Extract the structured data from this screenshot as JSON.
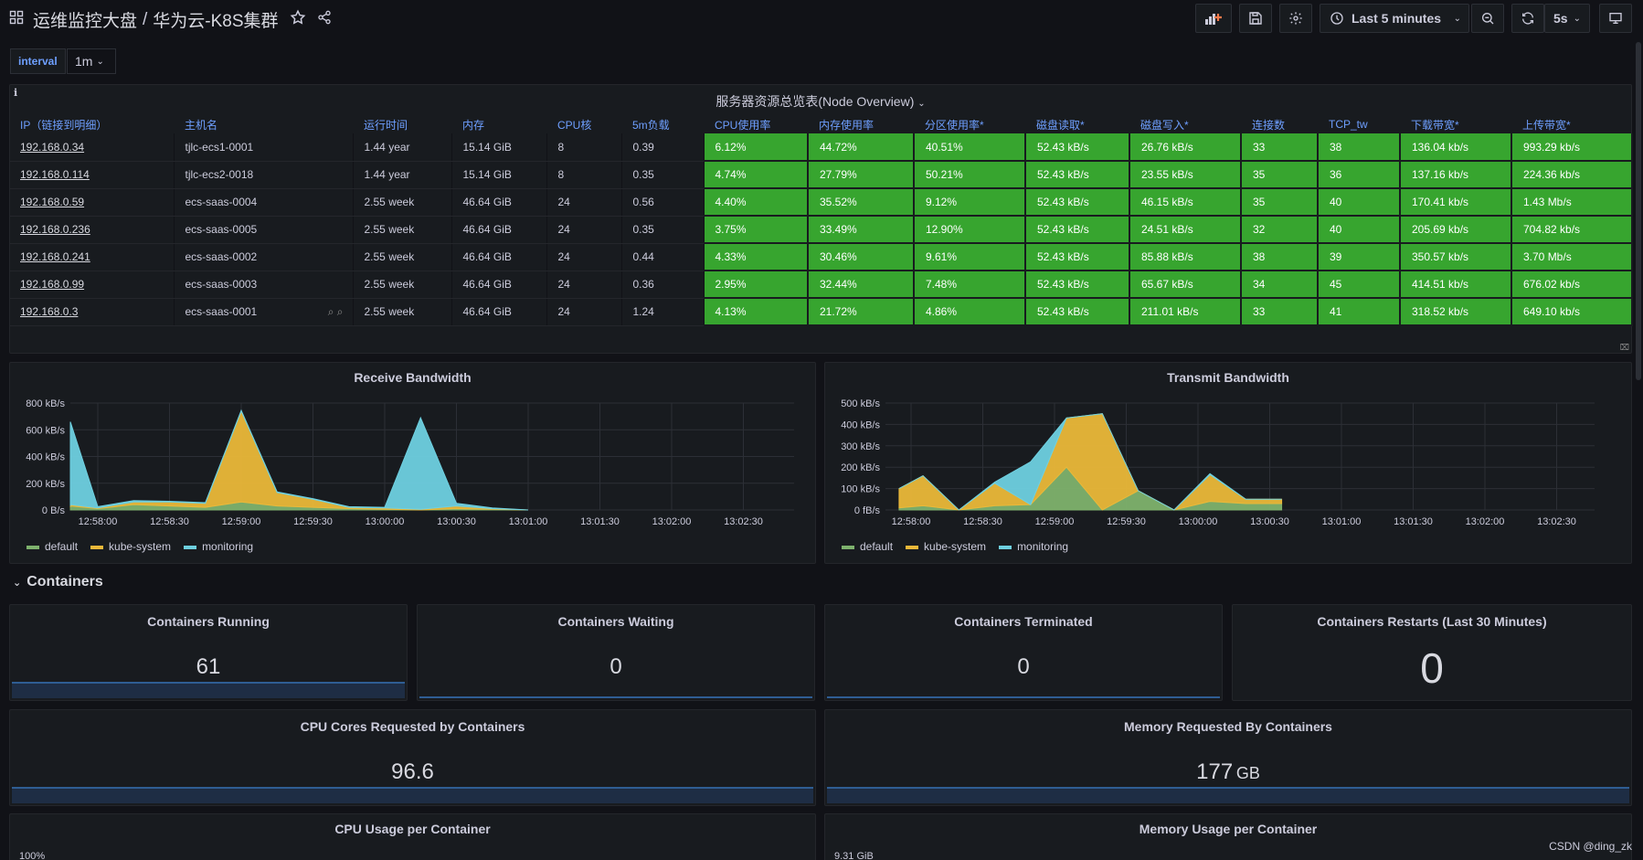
{
  "header": {
    "folder": "运维监控大盘",
    "separator": "/",
    "dashboard": "华为云-K8S集群",
    "time_range": "Last 5 minutes",
    "refresh": "5s"
  },
  "variables": {
    "interval_label": "interval",
    "interval_value": "1m"
  },
  "node_overview": {
    "title": "服务器资源总览表(Node Overview)",
    "info": "i",
    "columns": [
      "IP（链接到明细）",
      "主机名",
      "运行时间",
      "内存",
      "CPU核",
      "5m负载",
      "CPU使用率",
      "内存使用率",
      "分区使用率*",
      "磁盘读取*",
      "磁盘写入*",
      "连接数",
      "TCP_tw",
      "下载带宽*",
      "上传带宽*"
    ],
    "rows": [
      [
        "192.168.0.34",
        "tjlc-ecs1-0001",
        "1.44 year",
        "15.14 GiB",
        "8",
        "0.39",
        "6.12%",
        "44.72%",
        "40.51%",
        "52.43 kB/s",
        "26.76 kB/s",
        "33",
        "38",
        "136.04 kb/s",
        "993.29 kb/s"
      ],
      [
        "192.168.0.114",
        "tjlc-ecs2-0018",
        "1.44 year",
        "15.14 GiB",
        "8",
        "0.35",
        "4.74%",
        "27.79%",
        "50.21%",
        "52.43 kB/s",
        "23.55 kB/s",
        "35",
        "36",
        "137.16 kb/s",
        "224.36 kb/s"
      ],
      [
        "192.168.0.59",
        "ecs-saas-0004",
        "2.55 week",
        "46.64 GiB",
        "24",
        "0.56",
        "4.40%",
        "35.52%",
        "9.12%",
        "52.43 kB/s",
        "46.15 kB/s",
        "35",
        "40",
        "170.41 kb/s",
        "1.43 Mb/s"
      ],
      [
        "192.168.0.236",
        "ecs-saas-0005",
        "2.55 week",
        "46.64 GiB",
        "24",
        "0.35",
        "3.75%",
        "33.49%",
        "12.90%",
        "52.43 kB/s",
        "24.51 kB/s",
        "32",
        "40",
        "205.69 kb/s",
        "704.82 kb/s"
      ],
      [
        "192.168.0.241",
        "ecs-saas-0002",
        "2.55 week",
        "46.64 GiB",
        "24",
        "0.44",
        "4.33%",
        "30.46%",
        "9.61%",
        "52.43 kB/s",
        "85.88 kB/s",
        "38",
        "39",
        "350.57 kb/s",
        "3.70 Mb/s"
      ],
      [
        "192.168.0.99",
        "ecs-saas-0003",
        "2.55 week",
        "46.64 GiB",
        "24",
        "0.36",
        "2.95%",
        "32.44%",
        "7.48%",
        "52.43 kB/s",
        "65.67 kB/s",
        "34",
        "45",
        "414.51 kb/s",
        "676.02 kb/s"
      ],
      [
        "192.168.0.3",
        "ecs-saas-0001",
        "2.55 week",
        "46.64 GiB",
        "24",
        "1.24",
        "4.13%",
        "21.72%",
        "4.86%",
        "52.43 kB/s",
        "211.01 kB/s",
        "33",
        "41",
        "318.52 kb/s",
        "649.10 kb/s"
      ]
    ],
    "threshold_color": "#37a52f"
  },
  "chart_data": [
    {
      "type": "area",
      "title": "Receive Bandwidth",
      "x": [
        "12:58:00",
        "12:58:30",
        "12:59:00",
        "12:59:30",
        "13:00:00",
        "13:00:30",
        "13:01:00",
        "13:01:30",
        "13:02:00",
        "13:02:30"
      ],
      "yticks": [
        "0 B/s",
        "200 kB/s",
        "400 kB/s",
        "600 kB/s",
        "800 kB/s"
      ],
      "ylim": [
        0,
        800
      ],
      "stacked": true,
      "series": [
        {
          "name": "default",
          "color": "#7eb26d",
          "values": [
            [
              -7,
              20
            ],
            [
              -3,
              30
            ],
            [
              0,
              10
            ],
            [
              3,
              40
            ],
            [
              6,
              30
            ],
            [
              9,
              20
            ],
            [
              12,
              60
            ],
            [
              15,
              30
            ],
            [
              18,
              20
            ],
            [
              21,
              10
            ],
            [
              24,
              5
            ],
            [
              27,
              0
            ],
            [
              30,
              10
            ],
            [
              33,
              5
            ],
            [
              36,
              0
            ]
          ]
        },
        {
          "name": "kube-system",
          "color": "#eab839",
          "values": [
            [
              -7,
              10
            ],
            [
              -3,
              10
            ],
            [
              0,
              5
            ],
            [
              3,
              20
            ],
            [
              6,
              30
            ],
            [
              9,
              30
            ],
            [
              12,
              680
            ],
            [
              15,
              100
            ],
            [
              18,
              60
            ],
            [
              21,
              10
            ],
            [
              24,
              10
            ],
            [
              27,
              5
            ],
            [
              30,
              20
            ],
            [
              33,
              5
            ],
            [
              36,
              0
            ]
          ]
        },
        {
          "name": "monitoring",
          "color": "#6ed0e0",
          "values": [
            [
              -7,
              380
            ],
            [
              -3,
              620
            ],
            [
              0,
              10
            ],
            [
              3,
              10
            ],
            [
              6,
              5
            ],
            [
              9,
              5
            ],
            [
              12,
              5
            ],
            [
              15,
              5
            ],
            [
              18,
              5
            ],
            [
              21,
              5
            ],
            [
              24,
              5
            ],
            [
              27,
              685
            ],
            [
              30,
              20
            ],
            [
              33,
              5
            ],
            [
              36,
              0
            ]
          ]
        }
      ],
      "legend": "bottom-left"
    },
    {
      "type": "area",
      "title": "Transmit Bandwidth",
      "x": [
        "12:58:00",
        "12:58:30",
        "12:59:00",
        "12:59:30",
        "13:00:00",
        "13:00:30",
        "13:01:00",
        "13:01:30",
        "13:02:00",
        "13:02:30"
      ],
      "yticks": [
        "0 fB/s",
        "100 kB/s",
        "200 kB/s",
        "300 kB/s",
        "400 kB/s",
        "500 kB/s"
      ],
      "ylim": [
        0,
        500
      ],
      "stacked": true,
      "series": [
        {
          "name": "default",
          "color": "#7eb26d",
          "values": [
            [
              -1,
              10
            ],
            [
              1,
              20
            ],
            [
              4,
              0
            ],
            [
              7,
              20
            ],
            [
              10,
              25
            ],
            [
              13,
              200
            ],
            [
              16,
              0
            ],
            [
              19,
              90
            ],
            [
              22,
              0
            ],
            [
              25,
              40
            ],
            [
              28,
              30
            ],
            [
              31,
              30
            ]
          ]
        },
        {
          "name": "kube-system",
          "color": "#eab839",
          "values": [
            [
              -1,
              90
            ],
            [
              1,
              140
            ],
            [
              4,
              0
            ],
            [
              7,
              105
            ],
            [
              10,
              0
            ],
            [
              13,
              230
            ],
            [
              16,
              450
            ],
            [
              19,
              0
            ],
            [
              22,
              0
            ],
            [
              25,
              125
            ],
            [
              28,
              20
            ],
            [
              31,
              20
            ]
          ]
        },
        {
          "name": "monitoring",
          "color": "#6ed0e0",
          "values": [
            [
              -1,
              0
            ],
            [
              1,
              0
            ],
            [
              4,
              0
            ],
            [
              7,
              5
            ],
            [
              10,
              200
            ],
            [
              13,
              0
            ],
            [
              16,
              0
            ],
            [
              19,
              0
            ],
            [
              22,
              0
            ],
            [
              25,
              5
            ],
            [
              28,
              0
            ],
            [
              31,
              0
            ]
          ]
        }
      ],
      "legend": "bottom-left"
    }
  ],
  "containers_section": "Containers",
  "stats": {
    "running": {
      "title": "Containers Running",
      "value": "61"
    },
    "waiting": {
      "title": "Containers Waiting",
      "value": "0"
    },
    "terminated": {
      "title": "Containers Terminated",
      "value": "0"
    },
    "restarts": {
      "title": "Containers Restarts (Last 30 Minutes)",
      "value": "0"
    },
    "cpu_requested": {
      "title": "CPU Cores Requested by Containers",
      "value": "96.6"
    },
    "mem_requested": {
      "title": "Memory Requested By Containers",
      "value": "177",
      "unit": "GB"
    }
  },
  "bottom_panels": {
    "cpu_usage": {
      "title": "CPU Usage per Container",
      "first_tick": "100%"
    },
    "mem_usage": {
      "title": "Memory Usage per Container",
      "first_tick": "9.31 GiB"
    }
  },
  "watermark": "CSDN @ding_zk"
}
